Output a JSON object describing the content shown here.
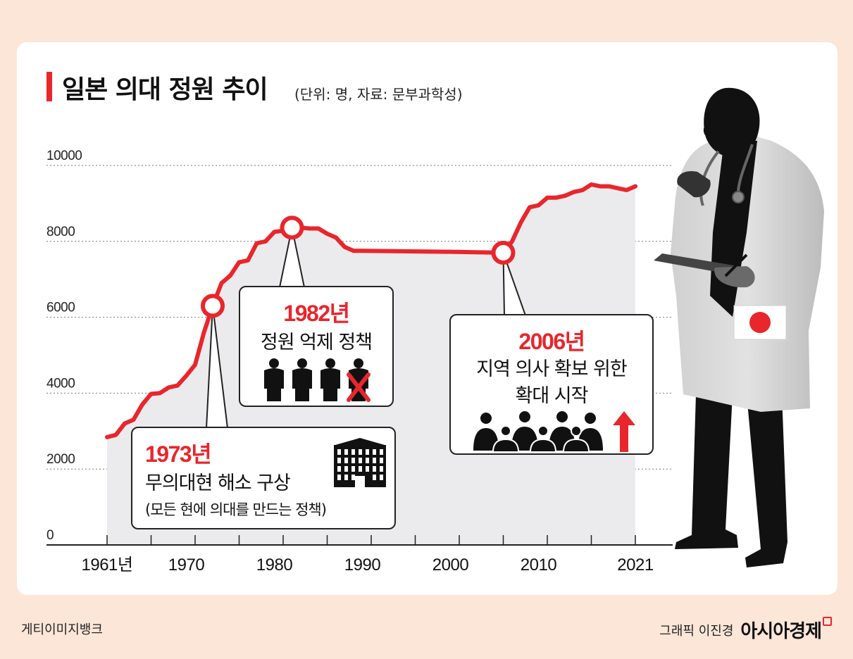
{
  "title": "일본 의대 정원 추이",
  "subtitle": "(단위: 명, 자료: 문부과학성)",
  "chart_data": {
    "type": "area",
    "ylim": [
      0,
      10000
    ],
    "y_ticks": [
      "10000",
      "8000",
      "6000",
      "4000",
      "2000",
      "0"
    ],
    "x_tick_labels": [
      "1961년",
      "1970",
      "1980",
      "1990",
      "2000",
      "2010",
      "2021"
    ],
    "x_tick_years": [
      1961,
      1970,
      1980,
      1990,
      2000,
      2010,
      2021
    ],
    "xlim": [
      1961,
      2021
    ],
    "grid": true,
    "series": [
      {
        "x": [
          1961,
          1962,
          1963,
          1964,
          1965,
          1966,
          1967,
          1968,
          1969,
          1970,
          1971,
          1972,
          1973,
          1974,
          1975,
          1976,
          1977,
          1978,
          1979,
          1980,
          1981,
          1982,
          1983,
          1984,
          1985,
          1986,
          1987,
          1988,
          1989,
          1990,
          2000,
          2006,
          2007,
          2008,
          2009,
          2010,
          2011,
          2012,
          2013,
          2014,
          2015,
          2016,
          2017,
          2018,
          2019,
          2020,
          2021
        ],
        "values": [
          2840,
          2900,
          3200,
          3300,
          3700,
          3980,
          4000,
          4150,
          4200,
          4460,
          4750,
          5600,
          6300,
          6900,
          7100,
          7450,
          7500,
          7950,
          8000,
          8250,
          8280,
          8360,
          8360,
          8340,
          8340,
          8200,
          8100,
          7850,
          7750,
          7750,
          7725,
          7700,
          8000,
          8500,
          8900,
          8950,
          9150,
          9150,
          9200,
          9300,
          9350,
          9500,
          9450,
          9450,
          9400,
          9350,
          9450
        ]
      }
    ],
    "highlights": [
      1973,
      1982,
      2006
    ],
    "annotations": [
      {
        "year": "1973년",
        "text": "무의대현 해소 구상",
        "note": "(모든 현에 의대를 만드는 정책)"
      },
      {
        "year": "1982년",
        "text": "정원 억제 정책"
      },
      {
        "year": "2006년",
        "text": "지역 의사 확보 위한",
        "text2": "확대 시작"
      }
    ]
  },
  "colors": {
    "line": "#e8262c",
    "area": "#ebebed",
    "accent": "#e8262c"
  },
  "footer": {
    "left": "게티이미지뱅크",
    "credit": "그래픽 이진경",
    "logo": "아시아경제"
  }
}
